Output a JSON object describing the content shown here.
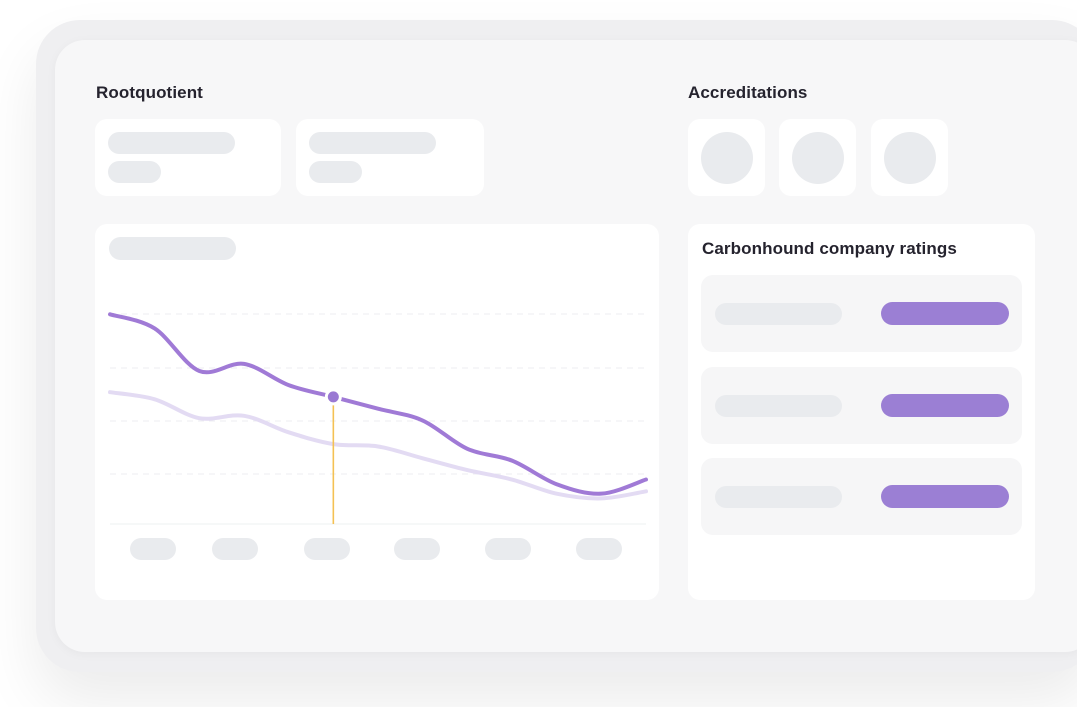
{
  "rootquotient": {
    "title": "Rootquotient"
  },
  "accreditations": {
    "title": "Accreditations"
  },
  "ratings": {
    "title": "Carbonhound company ratings",
    "bar_color": "#9b7fd4",
    "rows": [
      {
        "label": ""
      },
      {
        "label": ""
      },
      {
        "label": ""
      }
    ]
  },
  "chart_data": {
    "type": "line",
    "title": "",
    "xlabel": "",
    "ylabel": "",
    "grid": true,
    "x": [
      0,
      1,
      2,
      3,
      4,
      5,
      6,
      7,
      8,
      9,
      10,
      11,
      12
    ],
    "series": [
      {
        "color": "#a07ad6",
        "values": [
          88,
          82,
          64,
          67,
          58,
          53,
          48,
          43,
          31,
          26,
          16,
          12,
          18
        ]
      },
      {
        "color": "#e3dbf3",
        "values": [
          55,
          52,
          44,
          45,
          38,
          33,
          32,
          27,
          22,
          18,
          12,
          10,
          13
        ]
      }
    ],
    "hover_index": 5,
    "marker_color": "#f4c153",
    "colors": {
      "marker_dot": "#9a79d3"
    }
  }
}
